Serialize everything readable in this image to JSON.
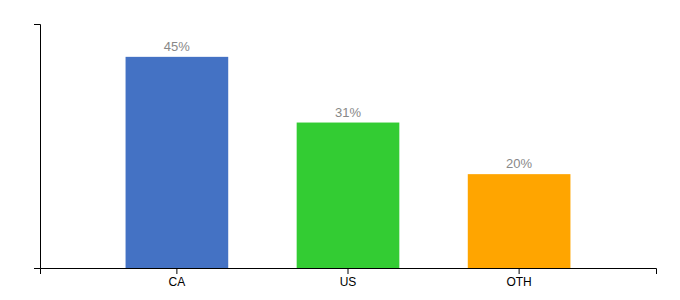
{
  "chart_data": {
    "type": "bar",
    "categories": [
      "CA",
      "US",
      "OTH"
    ],
    "values": [
      45,
      31,
      20
    ],
    "value_labels": [
      "45%",
      "31%",
      "20%"
    ],
    "colors": [
      "#4472C4",
      "#33CC33",
      "#FFA500"
    ],
    "ylim": [
      0,
      52
    ],
    "data_labels": true,
    "tick_labels": "x",
    "grid": false
  }
}
